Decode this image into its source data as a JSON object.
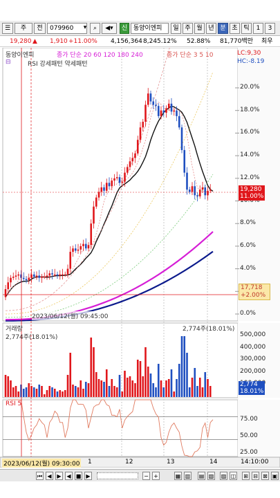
{
  "toolbar": {
    "period_selector": "주",
    "prev_label": "전",
    "stock_code": "079960",
    "stock_name": "동양이엔피",
    "new_label": "신",
    "period_buttons": [
      "일",
      "주",
      "월",
      "년",
      "분",
      "초",
      "틱",
      "1",
      "3"
    ],
    "active_period": "분"
  },
  "quote": {
    "price": "19,280",
    "change": "1,910",
    "change_pct": "+11.00%",
    "volume": "4,156,364",
    "amount_pct": "8,245.12%",
    "rate": "52.88%",
    "value": "81,770백만",
    "last_label": "최우"
  },
  "price_panel": {
    "legend_name": "동양이엔피",
    "legend_ma1": "종가 단순 20 60 120 180 240",
    "legend_ma2": "종가 단순 3 5 10",
    "legend_rsi_pattern": "RSI 강세패턴  약세패턴",
    "lc": "LC:9,30",
    "hc": "HC:-8.19",
    "current_price": "19,280",
    "current_pct": "11.00%",
    "base_price": "17,718",
    "base_pct": "+2.00%",
    "cursor_label": "2023/06/12(월) 09:45:00",
    "y_ticks": [
      "20.0%",
      "18.0%",
      "16.0%",
      "14.0%",
      "12.0%",
      "10.0%",
      "8.0%",
      "6.0%",
      "4.0%",
      "2.0%",
      "0.0%"
    ]
  },
  "volume_panel": {
    "title": "거래량",
    "value_left": "2,774주(18.01%)",
    "value_right": "2,774주(18.01%)",
    "current": "2,774",
    "current_pct": "18.01%",
    "y_ticks": [
      "500,000",
      "400,000",
      "300,000",
      "200,000",
      "100,000"
    ]
  },
  "rsi_panel": {
    "title": "RSI 5",
    "y_ticks": [
      "75.00",
      "50.00",
      "25.00"
    ]
  },
  "x_axis": {
    "cursor_date": "2023/06/12(월) 09:30:00",
    "labels": [
      "1",
      "12",
      "13",
      "14"
    ],
    "right_time": "14:10:00"
  },
  "colors": {
    "up": "#e0161b",
    "down": "#1f4fc0",
    "ma_black": "#111111",
    "ma_magenta": "#d61ed6",
    "ma_navy": "#0b1a8c"
  }
}
